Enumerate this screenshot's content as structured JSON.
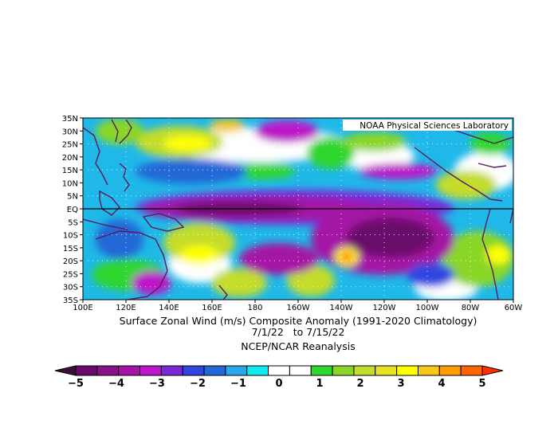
{
  "map": {
    "credit": "NOAA Physical Sciences Laboratory",
    "lat_labels": [
      "35N",
      "30N",
      "25N",
      "20N",
      "15N",
      "10N",
      "5N",
      "EQ",
      "5S",
      "10S",
      "15S",
      "20S",
      "25S",
      "30S",
      "35S"
    ],
    "lon_labels": [
      "100E",
      "120E",
      "140E",
      "160E",
      "180",
      "160W",
      "140W",
      "120W",
      "100W",
      "80W",
      "60W"
    ]
  },
  "caption": {
    "line1": "Surface Zonal Wind (m/s) Composite Anomaly (1991-2020 Climatology)",
    "line2": "7/1/22   to 7/15/22",
    "line3": "NCEP/NCAR Reanalysis"
  },
  "colorbar": {
    "labels": [
      "-5",
      "-4",
      "-3",
      "-2",
      "-1",
      "0",
      "1",
      "2",
      "3",
      "4",
      "5"
    ],
    "colors": [
      "#3a0f3a",
      "#6a0a6a",
      "#8a0f8a",
      "#a413a4",
      "#bd19c8",
      "#7a2ad6",
      "#2f46e0",
      "#2268d6",
      "#2aa7e6",
      "#12eaf0",
      "#ffffff",
      "#ffffff",
      "#2fd62f",
      "#8ad628",
      "#c4dc2a",
      "#e8e424",
      "#ffff00",
      "#f7c81c",
      "#ff9c00",
      "#ff6600",
      "#ff3000"
    ]
  }
}
